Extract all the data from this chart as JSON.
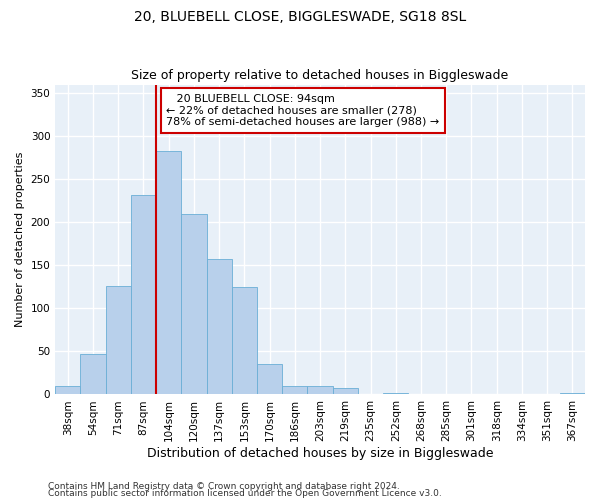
{
  "title1": "20, BLUEBELL CLOSE, BIGGLESWADE, SG18 8SL",
  "title2": "Size of property relative to detached houses in Biggleswade",
  "xlabel": "Distribution of detached houses by size in Biggleswade",
  "ylabel": "Number of detached properties",
  "footer1": "Contains HM Land Registry data © Crown copyright and database right 2024.",
  "footer2": "Contains public sector information licensed under the Open Government Licence v3.0.",
  "annotation_line1": "   20 BLUEBELL CLOSE: 94sqm   ",
  "annotation_line2": "← 22% of detached houses are smaller (278)",
  "annotation_line3": "78% of semi-detached houses are larger (988) →",
  "bar_categories": [
    "38sqm",
    "54sqm",
    "71sqm",
    "87sqm",
    "104sqm",
    "120sqm",
    "137sqm",
    "153sqm",
    "170sqm",
    "186sqm",
    "203sqm",
    "219sqm",
    "235sqm",
    "252sqm",
    "268sqm",
    "285sqm",
    "301sqm",
    "318sqm",
    "334sqm",
    "351sqm",
    "367sqm"
  ],
  "bar_values": [
    10,
    47,
    126,
    232,
    283,
    210,
    157,
    125,
    35,
    10,
    10,
    8,
    0,
    2,
    0,
    0,
    0,
    0,
    0,
    0,
    2
  ],
  "bar_color": "#b8d0eb",
  "bar_edge_color": "#6aaed6",
  "vline_color": "#cc0000",
  "vline_x": 3.5,
  "ylim": [
    0,
    360
  ],
  "yticks": [
    0,
    50,
    100,
    150,
    200,
    250,
    300,
    350
  ],
  "bg_color": "#e8f0f8",
  "grid_color": "#ffffff",
  "annotation_box_facecolor": "#ffffff",
  "annotation_box_edgecolor": "#cc0000",
  "title1_fontsize": 10,
  "title2_fontsize": 9,
  "xlabel_fontsize": 9,
  "ylabel_fontsize": 8,
  "tick_fontsize": 7.5,
  "annotation_fontsize": 8,
  "footer_fontsize": 6.5,
  "figwidth": 6.0,
  "figheight": 5.0,
  "dpi": 100
}
